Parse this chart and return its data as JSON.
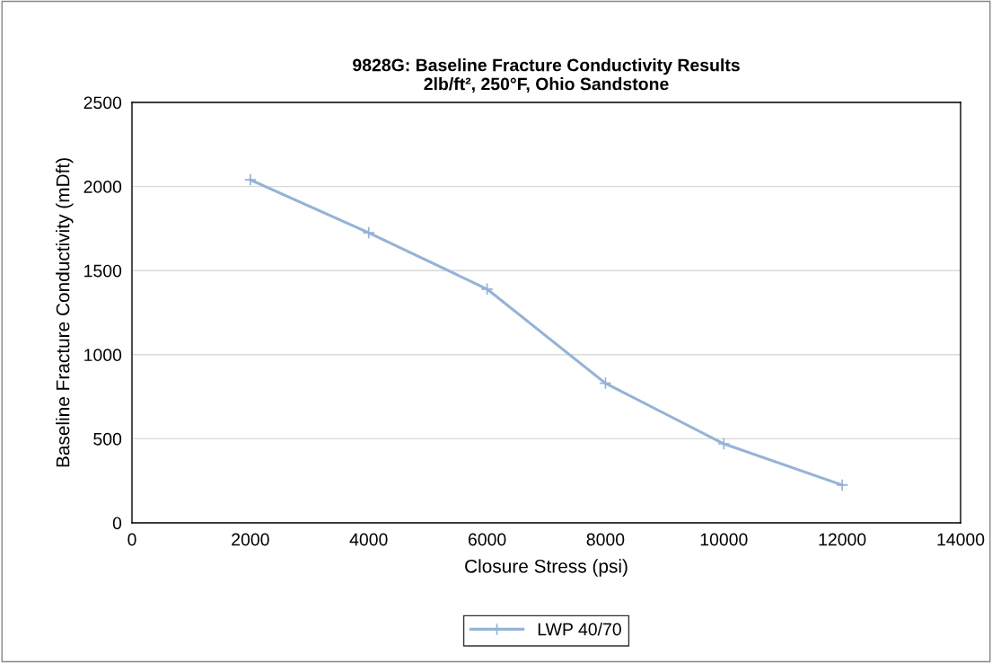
{
  "chart_data": {
    "type": "line",
    "title": "9828G: Baseline Fracture Conductivity Results\n2lb/ft², 250°F, Ohio Sandstone",
    "xlabel": "Closure Stress (psi)",
    "ylabel": "Baseline Fracture Conductivity (mDft)",
    "x": [
      2000,
      4000,
      6000,
      8000,
      10000,
      12000
    ],
    "series": [
      {
        "name": "LWP 40/70",
        "color": "#95b3d7",
        "values": [
          2040,
          1725,
          1390,
          830,
          470,
          225
        ]
      }
    ],
    "xlim": [
      0,
      14000
    ],
    "xticks": [
      0,
      2000,
      4000,
      6000,
      8000,
      10000,
      12000,
      14000
    ],
    "ylim": [
      0,
      2500
    ],
    "yticks": [
      0,
      500,
      1000,
      1500,
      2000,
      2500
    ],
    "grid": "y",
    "legend": "bottom",
    "marker": "cross",
    "line_style": "solid"
  }
}
